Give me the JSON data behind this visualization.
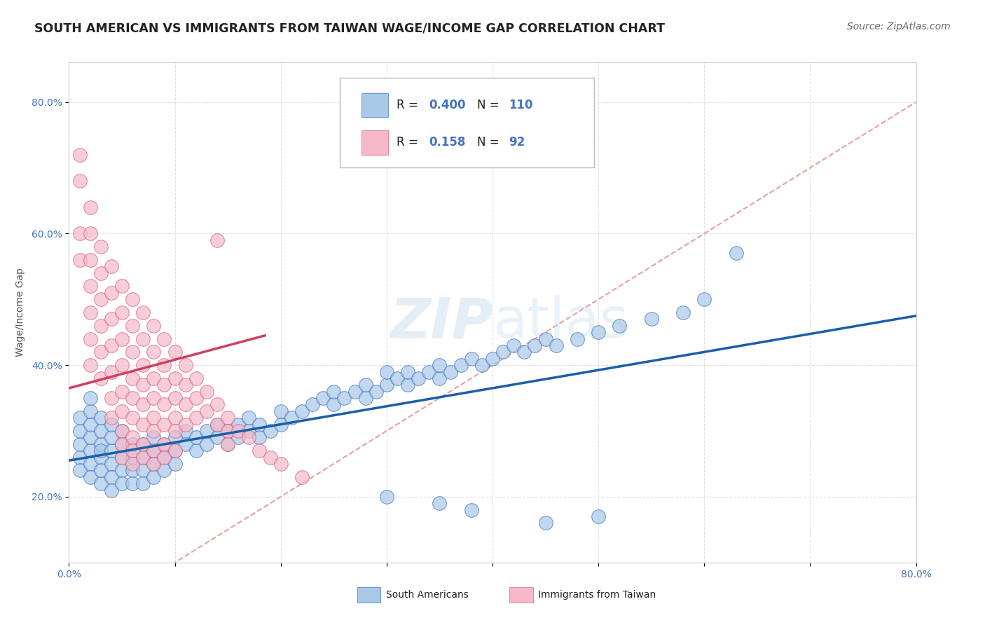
{
  "title": "SOUTH AMERICAN VS IMMIGRANTS FROM TAIWAN WAGE/INCOME GAP CORRELATION CHART",
  "source": "Source: ZipAtlas.com",
  "ylabel": "Wage/Income Gap",
  "watermark": "ZIPatlas",
  "blue_R": 0.4,
  "blue_N": 110,
  "pink_R": 0.158,
  "pink_N": 92,
  "blue_color": "#a8c8e8",
  "pink_color": "#f4b8c8",
  "blue_edge_color": "#4472c4",
  "pink_edge_color": "#e06080",
  "blue_trend_color": "#1a5fa8",
  "pink_trend_color": "#d04060",
  "diagonal_color": "#e8a0a0",
  "background_color": "#ffffff",
  "grid_color": "#e0e0e0",
  "tick_color": "#4472c4",
  "xlim": [
    0.0,
    0.8
  ],
  "ylim": [
    0.1,
    0.86
  ],
  "blue_scatter_x": [
    0.01,
    0.01,
    0.01,
    0.01,
    0.01,
    0.02,
    0.02,
    0.02,
    0.02,
    0.02,
    0.02,
    0.02,
    0.03,
    0.03,
    0.03,
    0.03,
    0.03,
    0.03,
    0.03,
    0.04,
    0.04,
    0.04,
    0.04,
    0.04,
    0.04,
    0.05,
    0.05,
    0.05,
    0.05,
    0.05,
    0.06,
    0.06,
    0.06,
    0.06,
    0.07,
    0.07,
    0.07,
    0.07,
    0.08,
    0.08,
    0.08,
    0.08,
    0.09,
    0.09,
    0.09,
    0.1,
    0.1,
    0.1,
    0.11,
    0.11,
    0.12,
    0.12,
    0.13,
    0.13,
    0.14,
    0.14,
    0.15,
    0.15,
    0.16,
    0.16,
    0.17,
    0.17,
    0.18,
    0.18,
    0.19,
    0.2,
    0.2,
    0.21,
    0.22,
    0.23,
    0.24,
    0.25,
    0.25,
    0.26,
    0.27,
    0.28,
    0.28,
    0.29,
    0.3,
    0.3,
    0.31,
    0.32,
    0.32,
    0.33,
    0.34,
    0.35,
    0.35,
    0.36,
    0.37,
    0.38,
    0.39,
    0.4,
    0.41,
    0.42,
    0.43,
    0.44,
    0.45,
    0.46,
    0.48,
    0.5,
    0.52,
    0.55,
    0.58,
    0.6,
    0.63,
    0.45,
    0.5,
    0.35,
    0.3,
    0.38
  ],
  "blue_scatter_y": [
    0.28,
    0.3,
    0.26,
    0.32,
    0.24,
    0.27,
    0.29,
    0.31,
    0.25,
    0.33,
    0.23,
    0.35,
    0.26,
    0.28,
    0.3,
    0.22,
    0.32,
    0.24,
    0.27,
    0.25,
    0.27,
    0.29,
    0.23,
    0.31,
    0.21,
    0.24,
    0.26,
    0.28,
    0.22,
    0.3,
    0.24,
    0.26,
    0.28,
    0.22,
    0.24,
    0.26,
    0.28,
    0.22,
    0.25,
    0.27,
    0.29,
    0.23,
    0.26,
    0.28,
    0.24,
    0.27,
    0.29,
    0.25,
    0.28,
    0.3,
    0.27,
    0.29,
    0.28,
    0.3,
    0.29,
    0.31,
    0.28,
    0.3,
    0.29,
    0.31,
    0.3,
    0.32,
    0.29,
    0.31,
    0.3,
    0.31,
    0.33,
    0.32,
    0.33,
    0.34,
    0.35,
    0.34,
    0.36,
    0.35,
    0.36,
    0.35,
    0.37,
    0.36,
    0.37,
    0.39,
    0.38,
    0.37,
    0.39,
    0.38,
    0.39,
    0.38,
    0.4,
    0.39,
    0.4,
    0.41,
    0.4,
    0.41,
    0.42,
    0.43,
    0.42,
    0.43,
    0.44,
    0.43,
    0.44,
    0.45,
    0.46,
    0.47,
    0.48,
    0.5,
    0.57,
    0.16,
    0.17,
    0.19,
    0.2,
    0.18
  ],
  "pink_scatter_x": [
    0.01,
    0.01,
    0.01,
    0.01,
    0.02,
    0.02,
    0.02,
    0.02,
    0.02,
    0.02,
    0.02,
    0.03,
    0.03,
    0.03,
    0.03,
    0.03,
    0.03,
    0.04,
    0.04,
    0.04,
    0.04,
    0.04,
    0.04,
    0.04,
    0.05,
    0.05,
    0.05,
    0.05,
    0.05,
    0.05,
    0.05,
    0.05,
    0.05,
    0.06,
    0.06,
    0.06,
    0.06,
    0.06,
    0.06,
    0.06,
    0.06,
    0.06,
    0.07,
    0.07,
    0.07,
    0.07,
    0.07,
    0.07,
    0.07,
    0.07,
    0.08,
    0.08,
    0.08,
    0.08,
    0.08,
    0.08,
    0.08,
    0.08,
    0.09,
    0.09,
    0.09,
    0.09,
    0.09,
    0.09,
    0.09,
    0.1,
    0.1,
    0.1,
    0.1,
    0.1,
    0.1,
    0.11,
    0.11,
    0.11,
    0.11,
    0.12,
    0.12,
    0.12,
    0.13,
    0.13,
    0.14,
    0.14,
    0.15,
    0.15,
    0.15,
    0.16,
    0.17,
    0.18,
    0.19,
    0.2,
    0.22,
    0.14
  ],
  "pink_scatter_y": [
    0.72,
    0.68,
    0.6,
    0.56,
    0.64,
    0.6,
    0.56,
    0.52,
    0.48,
    0.44,
    0.4,
    0.58,
    0.54,
    0.5,
    0.46,
    0.42,
    0.38,
    0.55,
    0.51,
    0.47,
    0.43,
    0.39,
    0.35,
    0.32,
    0.52,
    0.48,
    0.44,
    0.4,
    0.36,
    0.33,
    0.3,
    0.28,
    0.26,
    0.5,
    0.46,
    0.42,
    0.38,
    0.35,
    0.32,
    0.29,
    0.27,
    0.25,
    0.48,
    0.44,
    0.4,
    0.37,
    0.34,
    0.31,
    0.28,
    0.26,
    0.46,
    0.42,
    0.38,
    0.35,
    0.32,
    0.3,
    0.27,
    0.25,
    0.44,
    0.4,
    0.37,
    0.34,
    0.31,
    0.28,
    0.26,
    0.42,
    0.38,
    0.35,
    0.32,
    0.3,
    0.27,
    0.4,
    0.37,
    0.34,
    0.31,
    0.38,
    0.35,
    0.32,
    0.36,
    0.33,
    0.34,
    0.31,
    0.32,
    0.3,
    0.28,
    0.3,
    0.29,
    0.27,
    0.26,
    0.25,
    0.23,
    0.59
  ]
}
